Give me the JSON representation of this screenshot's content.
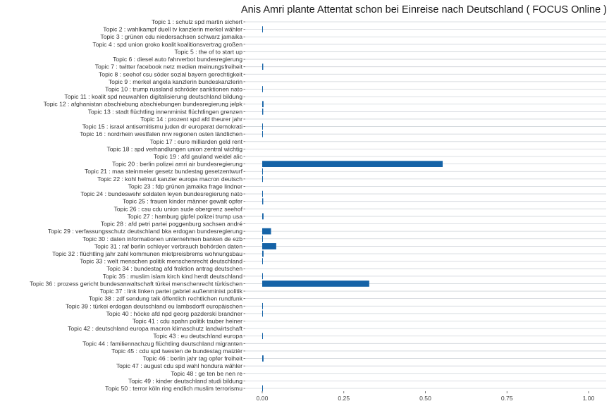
{
  "colors": {
    "bar": "#1563a7",
    "grid": "#cfd4da",
    "text": "#333333"
  },
  "chart_data": {
    "type": "bar",
    "orientation": "horizontal",
    "title": "Anis Amri plante Attentat schon bei Einreise nach Deutschland ( FOCUS Online )",
    "xlabel": "",
    "ylabel": "",
    "xlim": [
      0,
      1.0
    ],
    "xticks": [
      "0.00",
      "0.25",
      "0.50",
      "0.75",
      "1.00"
    ],
    "xtick_values": [
      0,
      0.25,
      0.5,
      0.75,
      1.0
    ],
    "grid": true,
    "categories": [
      "Topic 1 : schulz spd martin sichert",
      "Topic 2 : wahlkampf duell tv kanzlerin merkel wähler",
      "Topic 3 : grünen cdu niedersachsen schwarz jamaika",
      "Topic 4 : spd union groko koalit koalitionsvertrag großen",
      "Topic 5 : the of to start up",
      "Topic 6 : diesel auto fahrverbot bundesregierung",
      "Topic 7 : twitter facebook netz medien meinungsfreiheit",
      "Topic 8 : seehof csu söder sozial bayern gerechtigkeit",
      "Topic 9 : merkel angela kanzlerin bundeskanzlerin",
      "Topic 10 : trump russland schröder sanktionen nato",
      "Topic 11 : koalit spd neuwahlen digitalisierung deutschland bildung",
      "Topic 12 : afghanistan abschiebung abschiebungen bundesregierung jelpk",
      "Topic 13 : stadt flüchtling innenminist flüchtlingen grenzen",
      "Topic 14 : prozent spd afd theurer jahr",
      "Topic 15 : israel antisemitismu juden dr europarat demokrati",
      "Topic 16 : nordrhein westfalen nrw regionen osten ländlichen",
      "Topic 17 : euro milliarden geld rent",
      "Topic 18 : spd verhandlungen union zentral wichtig",
      "Topic 19 : afd gauland weidel alic",
      "Topic 20 : berlin polizei amri air bundesregierung",
      "Topic 21 : maa steinmeier gesetz bundestag gesetzentwurf",
      "Topic 22 : kohl helmut kanzler europa macron deutsch",
      "Topic 23 : fdp grünen jamaika frage lindner",
      "Topic 24 : bundeswehr soldaten leyen bundesregierung nato",
      "Topic 25 : frauen kinder männer gewalt opfer",
      "Topic 26 : csu cdu union sude obergrenz seehof",
      "Topic 27 : hamburg gipfel polizei trump usa",
      "Topic 28 : afd petri partei poggenburg sachsen andré",
      "Topic 29 : verfassungsschutz deutschland bka erdogan bundesregierung",
      "Topic 30 : daten informationen unternehmen banken de ezb",
      "Topic 31 : raf berlin schleyer verbrauch behörden daten",
      "Topic 32 : flüchtling jahr zahl kommunen mietpreisbrems wohnungsbau",
      "Topic 33 : welt menschen politik menschenrecht deutschland",
      "Topic 34 : bundestag afd fraktion antrag deutschen",
      "Topic 35 : muslim islam kirch kind herdt deutschland",
      "Topic 36 : prozess gericht bundesanwaltschaft türkei menschenrecht türkischen",
      "Topic 37 : link linken partei gabriel außenminist politik",
      "Topic 38 : zdf sendung talk öffentlich rechtlichen rundfunk",
      "Topic 39 : türkei erdogan deutschland eu lambsdorff europäischen",
      "Topic 40 : höcke afd npd georg pazderski brandner",
      "Topic 41 : cdu spahn politik tauber heiner",
      "Topic 42 : deutschland europa macron klimaschutz landwirtschaft",
      "Topic 43 : eu deutschland europa",
      "Topic 44 : familiennachzug flüchtling deutschland migranten",
      "Topic 45 : cdu spd twesten de bundestag maizièr",
      "Topic 46 : berlin jahr tag opfer freiheit",
      "Topic 47 : august cdu spd wahl hondura wähler",
      "Topic 48 : ge ten be nen re",
      "Topic 49 : kinder deutschland studi bildung",
      "Topic 50 : terror köln ring endlich muslim terrorismu"
    ],
    "values": [
      0.0,
      0.001,
      0.0,
      0.0,
      0.0,
      0.0,
      0.003,
      0.0,
      0.0,
      0.001,
      0.0,
      0.004,
      0.003,
      0.0,
      0.001,
      0.001,
      0.0,
      0.0,
      0.0,
      0.553,
      0.002,
      0.001,
      0.0,
      0.001,
      0.003,
      0.0,
      0.004,
      0.0,
      0.027,
      0.001,
      0.043,
      0.004,
      0.002,
      0.0,
      0.001,
      0.328,
      0.0,
      0.0,
      0.002,
      0.002,
      0.0,
      0.0,
      0.001,
      0.0,
      0.0,
      0.004,
      0.0,
      0.0,
      0.0,
      0.001
    ]
  }
}
